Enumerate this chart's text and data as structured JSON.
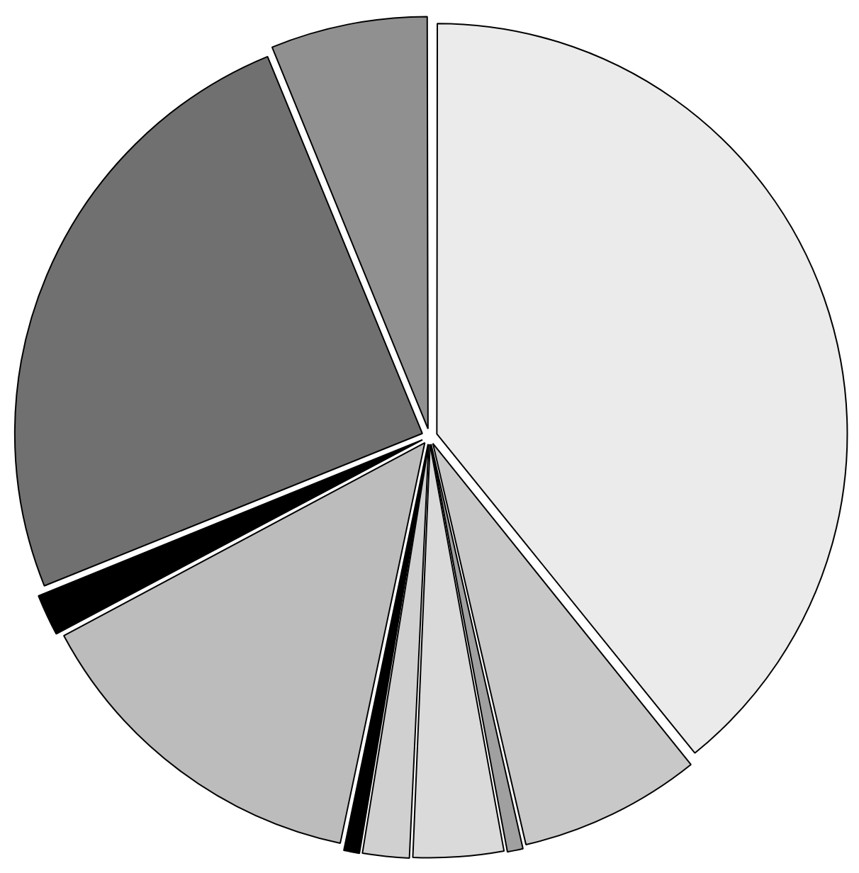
{
  "chart_data": {
    "type": "pie",
    "categories": [
      null,
      null,
      null,
      null,
      null,
      null,
      null,
      null,
      null,
      null
    ],
    "values": [
      39.2,
      7.2,
      0.7,
      3.6,
      1.9,
      0.7,
      13.9,
      1.7,
      24.9,
      6.2
    ],
    "colors": [
      "#ebebeb",
      "#c8c8c8",
      "#a0a0a0",
      "#dadada",
      "#d0d0d0",
      "#000000",
      "#bcbcbc",
      "#000000",
      "#707070",
      "#909090"
    ],
    "legend": false
  }
}
